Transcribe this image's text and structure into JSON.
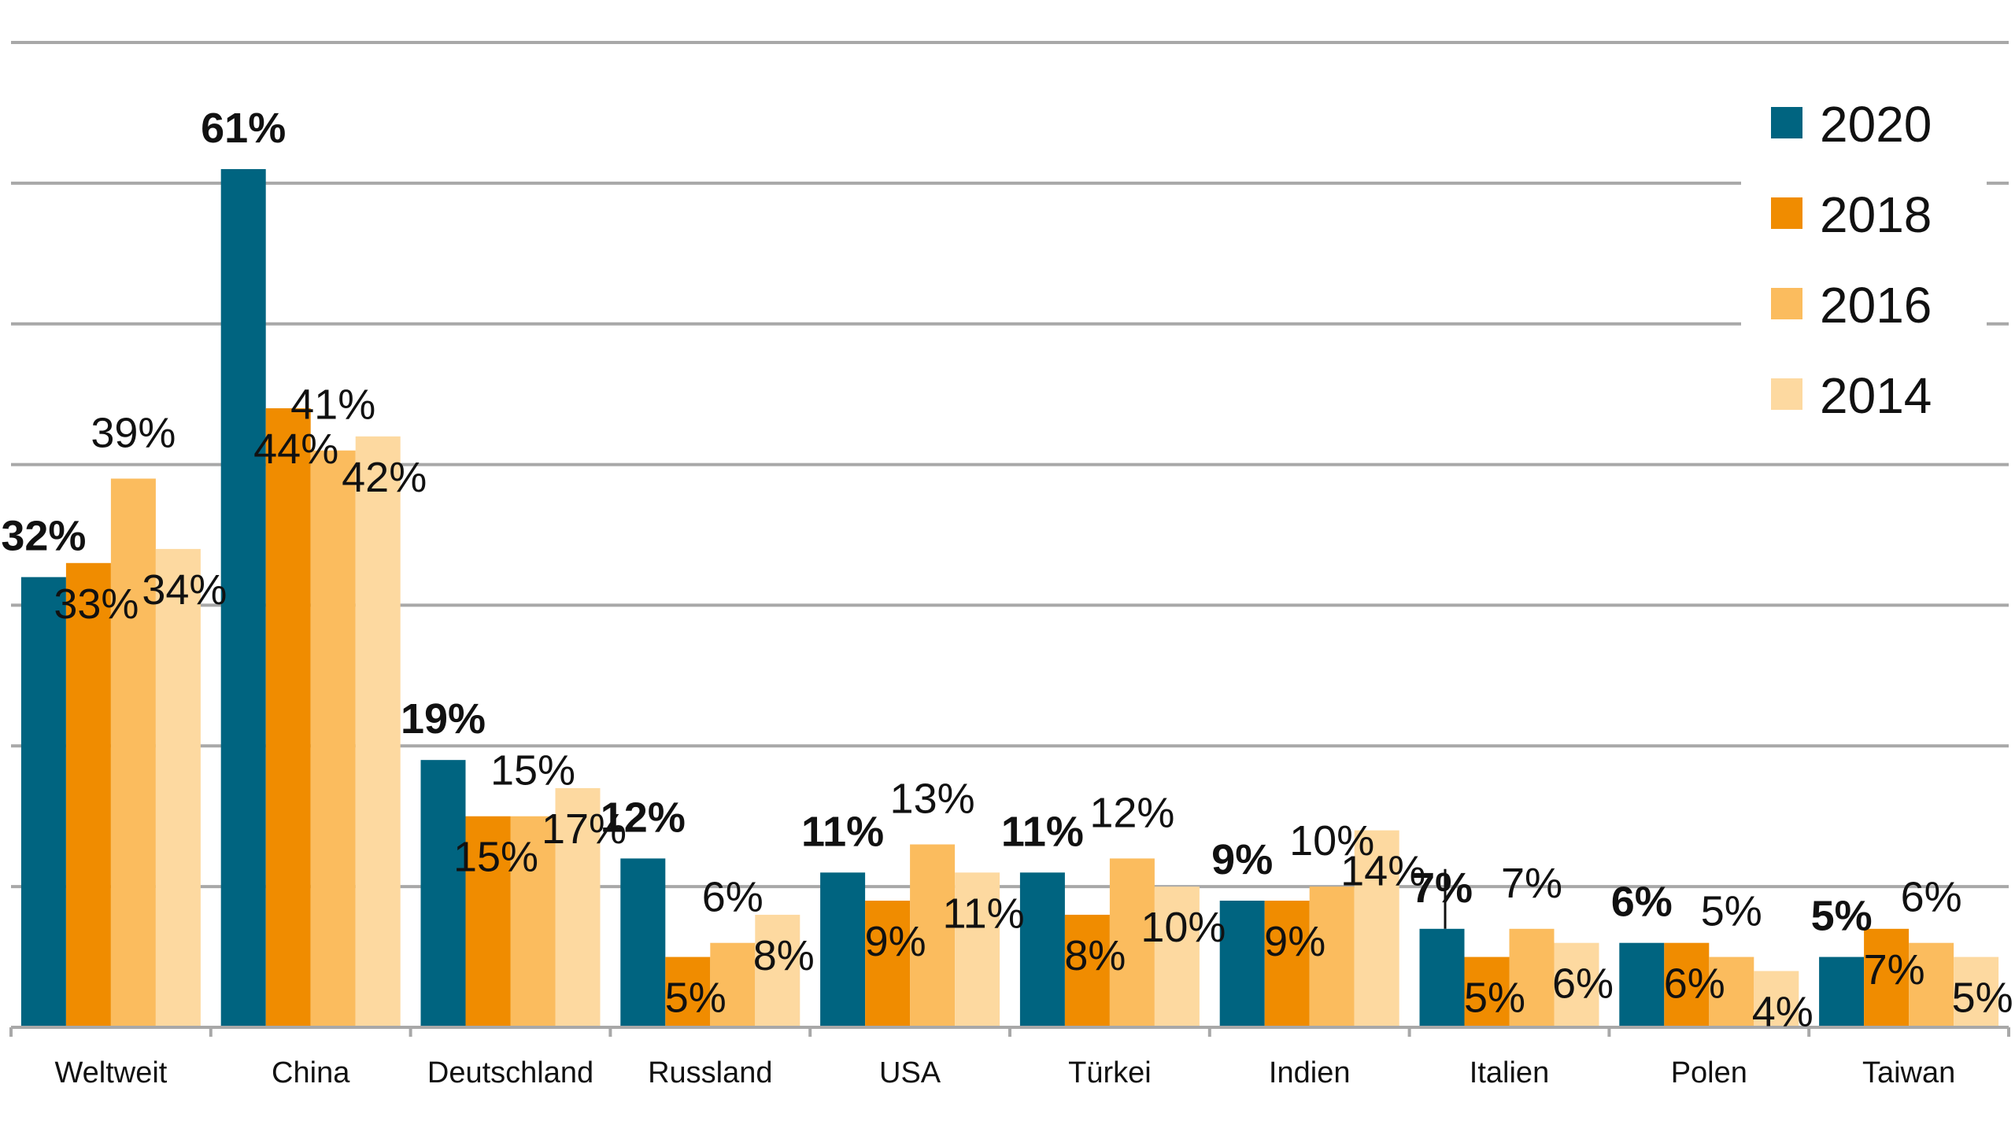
{
  "chart_data": {
    "type": "bar",
    "title": "",
    "xlabel": "",
    "ylabel": "",
    "ylim": [
      0,
      70
    ],
    "grid": true,
    "legend_position": "top-right",
    "categories": [
      "Weltweit",
      "China",
      "Deutschland",
      "Russland",
      "USA",
      "Türkei",
      "Indien",
      "Italien",
      "Polen",
      "Taiwan"
    ],
    "series": [
      {
        "name": "2020",
        "color": "#006480",
        "bold_labels": true,
        "values": [
          32,
          61,
          19,
          12,
          11,
          11,
          9,
          7,
          6,
          5
        ],
        "labels": [
          "32%",
          "61%",
          "19%",
          "12%",
          "11%",
          "11%",
          "9%",
          "7%",
          "6%",
          "5%"
        ]
      },
      {
        "name": "2018",
        "color": "#f08c00",
        "bold_labels": false,
        "values": [
          33,
          44,
          15,
          5,
          9,
          8,
          9,
          5,
          6,
          7
        ],
        "labels": [
          "33%",
          "44%",
          "15%",
          "5%",
          "9%",
          "8%",
          "9%",
          "5%",
          "6%",
          "7%"
        ]
      },
      {
        "name": "2016",
        "color": "#fbbc5e",
        "bold_labels": false,
        "values": [
          39,
          41,
          15,
          6,
          13,
          12,
          10,
          7,
          5,
          6
        ],
        "labels": [
          "39%",
          "41%",
          "15%",
          "6%",
          "13%",
          "12%",
          "10%",
          "7%",
          "5%",
          "6%"
        ]
      },
      {
        "name": "2014",
        "color": "#fdd9a0",
        "bold_labels": false,
        "values": [
          34,
          42,
          17,
          8,
          11,
          10,
          14,
          6,
          4,
          5
        ],
        "labels": [
          "34%",
          "42%",
          "17%",
          "8%",
          "11%",
          "10%",
          "14%",
          "6%",
          "4%",
          "5%"
        ]
      }
    ]
  }
}
